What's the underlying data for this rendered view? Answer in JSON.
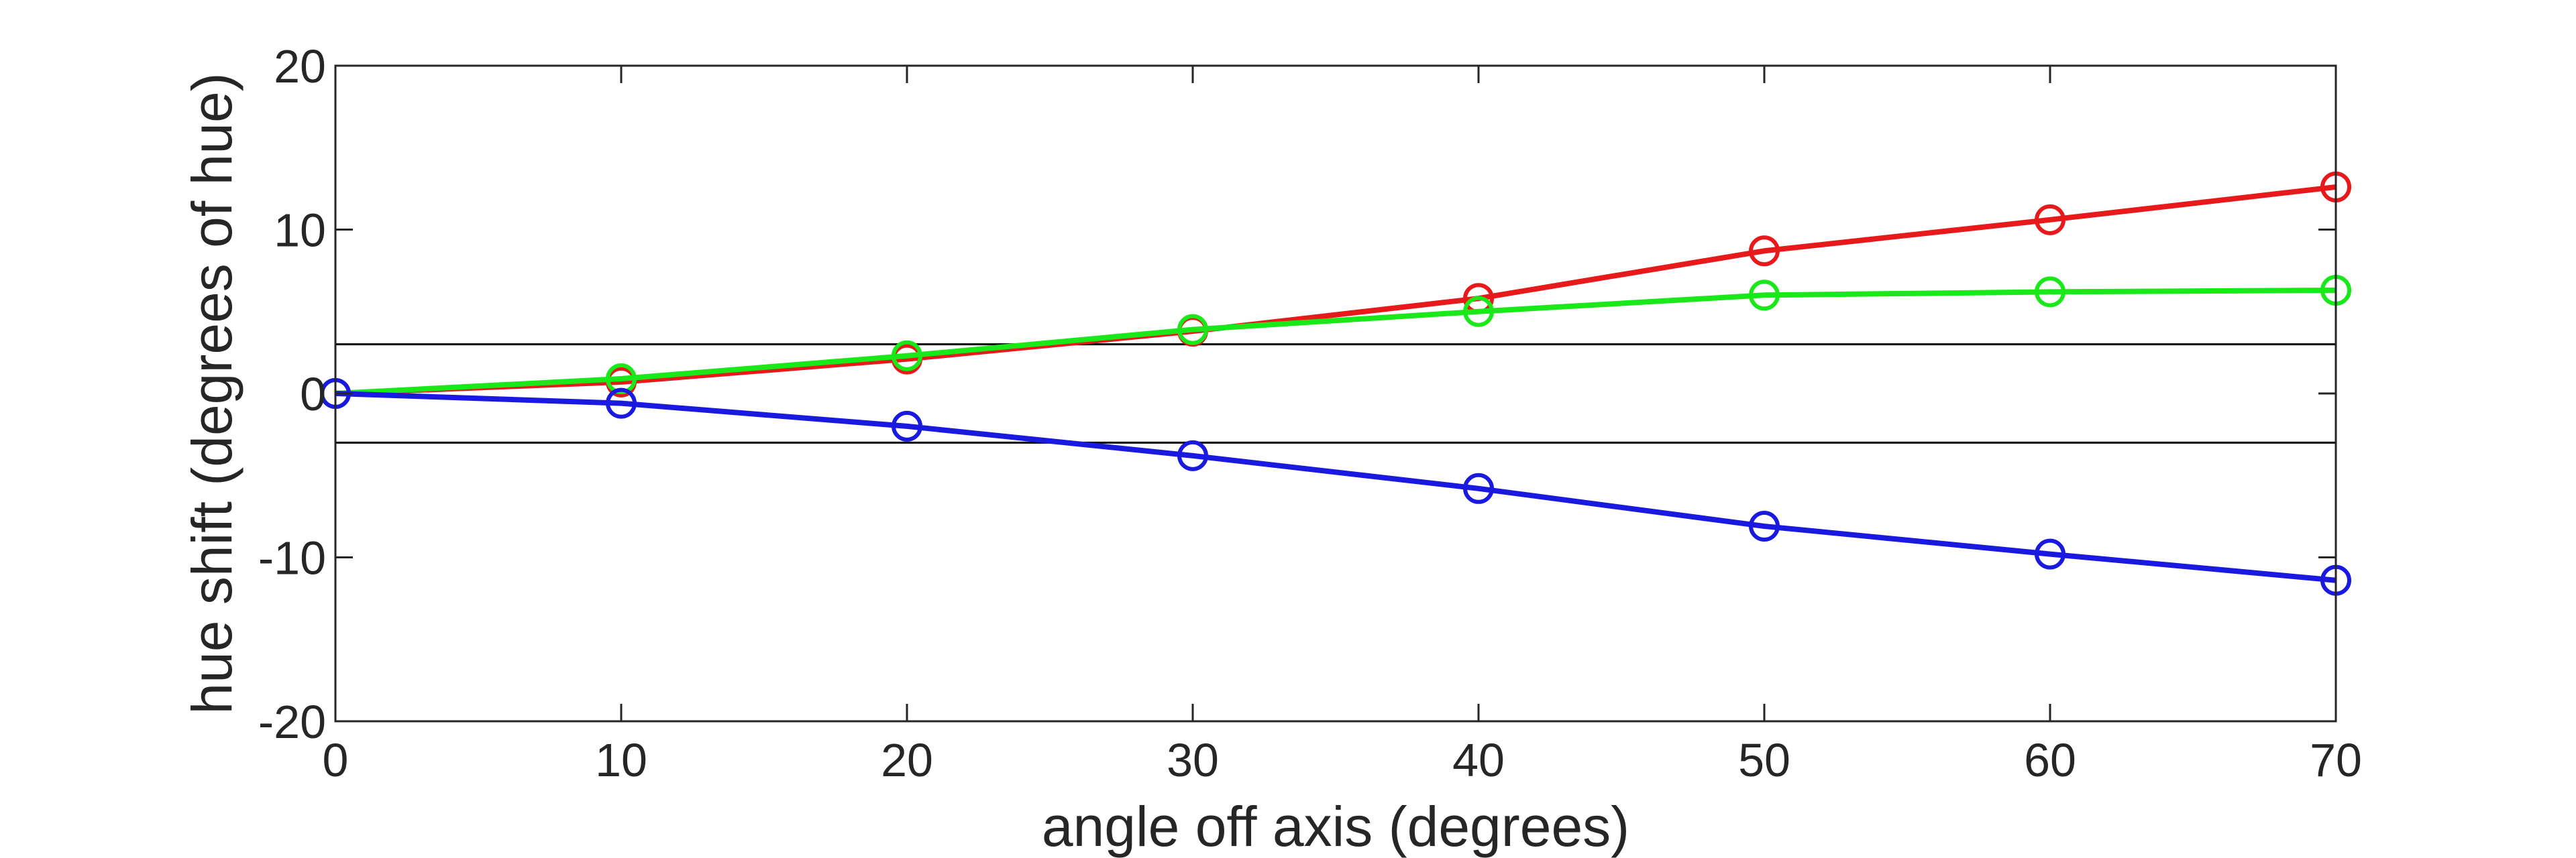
{
  "chart_data": {
    "type": "line",
    "title": "",
    "xlabel": "angle off axis (degrees)",
    "ylabel": "hue shift (degrees of hue)",
    "xlim": [
      0,
      70
    ],
    "ylim": [
      -20,
      20
    ],
    "xticks": [
      0,
      10,
      20,
      30,
      40,
      50,
      60,
      70
    ],
    "yticks": [
      -20,
      -10,
      0,
      10,
      20
    ],
    "x": [
      0,
      10,
      20,
      30,
      40,
      50,
      60,
      70
    ],
    "grid": false,
    "legend": "none",
    "reference_lines": [
      3,
      -3
    ],
    "series": [
      {
        "color": "#e8191b",
        "values": [
          0,
          0.7,
          2.1,
          3.8,
          5.8,
          8.7,
          10.6,
          12.6
        ]
      },
      {
        "color": "#19e819",
        "values": [
          0,
          0.9,
          2.3,
          3.9,
          5.0,
          6.0,
          6.2,
          6.3
        ]
      },
      {
        "color": "#1919e0",
        "values": [
          0,
          -0.6,
          -2.0,
          -3.8,
          -5.8,
          -8.1,
          -9.8,
          -11.4
        ]
      }
    ]
  }
}
